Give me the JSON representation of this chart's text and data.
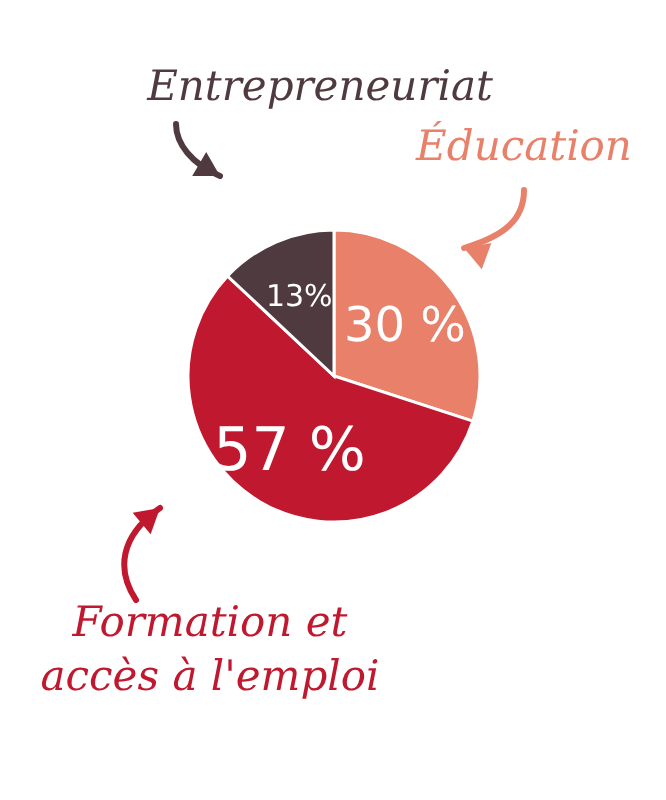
{
  "chart_data": {
    "type": "pie",
    "categories": [
      "Éducation",
      "Formation et accès à l'emploi",
      "Entrepreneuriat"
    ],
    "values": [
      30,
      57,
      13
    ],
    "colors": [
      "#e8806a",
      "#c0192f",
      "#4f3a3f"
    ],
    "value_labels": [
      "30 %",
      "57 %",
      "13%"
    ]
  }
}
